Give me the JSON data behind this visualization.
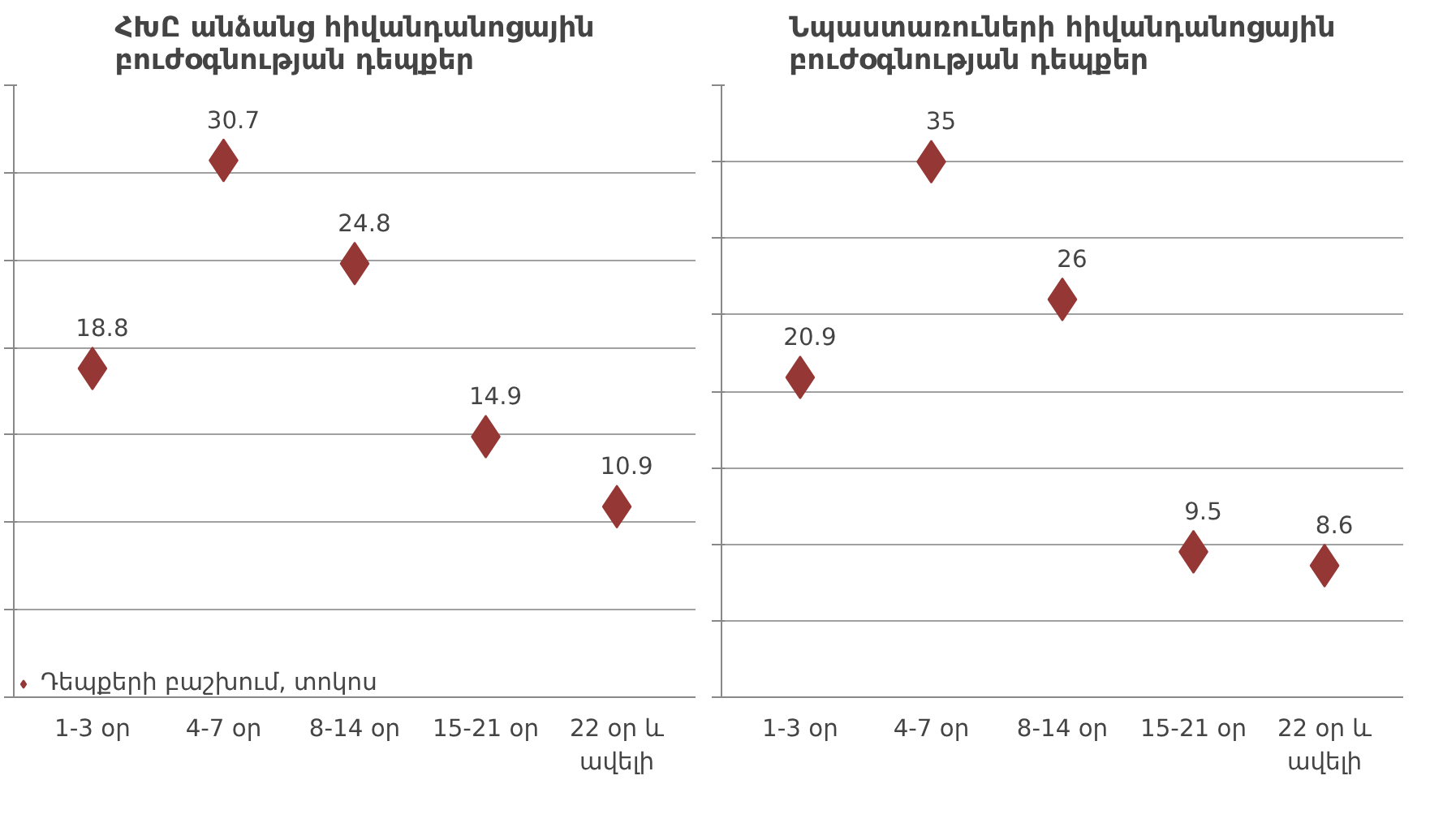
{
  "chart_data": [
    {
      "type": "scatter",
      "title": "ՀԽԸ անձանց հիվանդանոցային բուժօգնության դեպքեր",
      "categories": [
        "1-3 օր",
        "4-7 օր",
        "8-14 օր",
        "15-21 օր",
        "22 օր և ավելի"
      ],
      "series": [
        {
          "name": "Դեպքերի բաշխում, տոկոս",
          "color": "#953735",
          "values": [
            18.8,
            30.7,
            24.8,
            14.9,
            10.9
          ]
        }
      ],
      "ylim": [
        0,
        35
      ],
      "yticks": [
        {
          "value": 0,
          "label": null
        },
        {
          "value": 5,
          "label": null
        },
        {
          "value": 10,
          "label": null
        },
        {
          "value": 15,
          "label": null
        },
        {
          "value": 20,
          "label": null
        },
        {
          "value": 25,
          "label": null
        },
        {
          "value": 30,
          "label": null
        },
        {
          "value": 35,
          "label": null
        }
      ],
      "tick_labels": "x",
      "grid": "y",
      "marker": "diamond",
      "data_labels": true,
      "legend": "bottom"
    },
    {
      "type": "scatter",
      "title": "Նպաստառուների հիվանդանոցային բուժօգնության դեպքեր",
      "categories": [
        "1-3 օր",
        "4-7 օր",
        "8-14 օր",
        "15-21 օր",
        "22 օր և ավելի"
      ],
      "series": [
        {
          "color": "#953735",
          "values": [
            20.9,
            35,
            26,
            9.5,
            8.6
          ]
        }
      ],
      "ylim": [
        0,
        40
      ],
      "yticks": [
        {
          "value": 0,
          "label": null
        },
        {
          "value": 5,
          "label": null
        },
        {
          "value": 10,
          "label": null
        },
        {
          "value": 15,
          "label": null
        },
        {
          "value": 20,
          "label": null
        },
        {
          "value": 25,
          "label": null
        },
        {
          "value": 30,
          "label": null
        },
        {
          "value": 35,
          "label": null
        },
        {
          "value": 40,
          "label": null
        }
      ],
      "tick_labels": "x",
      "grid": "y",
      "marker": "diamond",
      "data_labels": true
    }
  ]
}
